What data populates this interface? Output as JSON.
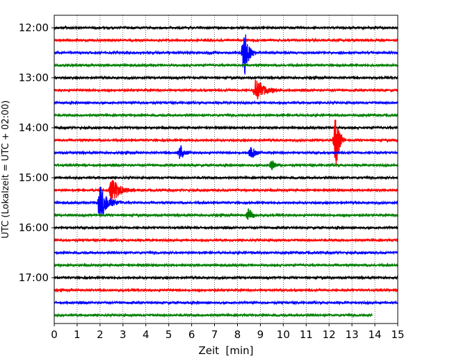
{
  "chart_data": {
    "type": "line",
    "title": "",
    "xlabel": "Zeit  [min]",
    "ylabel": "UTC (Lokalzeit = UTC + 02:00)",
    "xlim": [
      0,
      15
    ],
    "x_ticks": [
      "0",
      "1",
      "2",
      "3",
      "4",
      "5",
      "6",
      "7",
      "8",
      "9",
      "10",
      "11",
      "12",
      "13",
      "14",
      "15"
    ],
    "y_ticks": [
      "12:00",
      "13:00",
      "14:00",
      "15:00",
      "16:00",
      "17:00"
    ],
    "trace_interval_min": 15,
    "trace_start": "12:00",
    "trace_colors": [
      "#000000",
      "#ff0000",
      "#0000ff",
      "#008000"
    ],
    "grid": "x-dotted",
    "traces": [
      {
        "start": "12:00",
        "color": "#000000",
        "events": []
      },
      {
        "start": "12:15",
        "color": "#ff0000",
        "events": []
      },
      {
        "start": "12:30",
        "color": "#0000ff",
        "events": [
          {
            "t": 8.3,
            "amp": 2.2,
            "dur": 0.5
          }
        ]
      },
      {
        "start": "12:45",
        "color": "#008000",
        "events": []
      },
      {
        "start": "13:00",
        "color": "#000000",
        "events": []
      },
      {
        "start": "13:15",
        "color": "#ff0000",
        "events": [
          {
            "t": 8.8,
            "amp": 1.0,
            "dur": 1.2
          }
        ]
      },
      {
        "start": "13:30",
        "color": "#0000ff",
        "events": []
      },
      {
        "start": "13:45",
        "color": "#008000",
        "events": []
      },
      {
        "start": "14:00",
        "color": "#000000",
        "events": []
      },
      {
        "start": "14:15",
        "color": "#ff0000",
        "events": [
          {
            "t": 12.3,
            "amp": 2.4,
            "dur": 0.4
          }
        ]
      },
      {
        "start": "14:30",
        "color": "#0000ff",
        "events": [
          {
            "t": 5.5,
            "amp": 0.7,
            "dur": 0.5
          },
          {
            "t": 8.6,
            "amp": 0.7,
            "dur": 0.6
          }
        ]
      },
      {
        "start": "14:45",
        "color": "#008000",
        "events": [
          {
            "t": 9.5,
            "amp": 0.45,
            "dur": 0.5
          }
        ]
      },
      {
        "start": "15:00",
        "color": "#000000",
        "events": []
      },
      {
        "start": "15:15",
        "color": "#ff0000",
        "events": [
          {
            "t": 2.5,
            "amp": 1.0,
            "dur": 1.2
          }
        ]
      },
      {
        "start": "15:30",
        "color": "#0000ff",
        "events": [
          {
            "t": 2.0,
            "amp": 1.5,
            "dur": 1.0
          }
        ]
      },
      {
        "start": "15:45",
        "color": "#008000",
        "events": [
          {
            "t": 8.5,
            "amp": 0.6,
            "dur": 0.5
          }
        ]
      },
      {
        "start": "16:00",
        "color": "#000000",
        "events": []
      },
      {
        "start": "16:15",
        "color": "#ff0000",
        "events": []
      },
      {
        "start": "16:30",
        "color": "#0000ff",
        "events": []
      },
      {
        "start": "16:45",
        "color": "#008000",
        "events": []
      },
      {
        "start": "17:00",
        "color": "#000000",
        "events": []
      },
      {
        "start": "17:15",
        "color": "#ff0000",
        "events": []
      },
      {
        "start": "17:30",
        "color": "#0000ff",
        "events": []
      },
      {
        "start": "17:45",
        "color": "#008000",
        "events": [],
        "end": 13.9
      }
    ]
  }
}
